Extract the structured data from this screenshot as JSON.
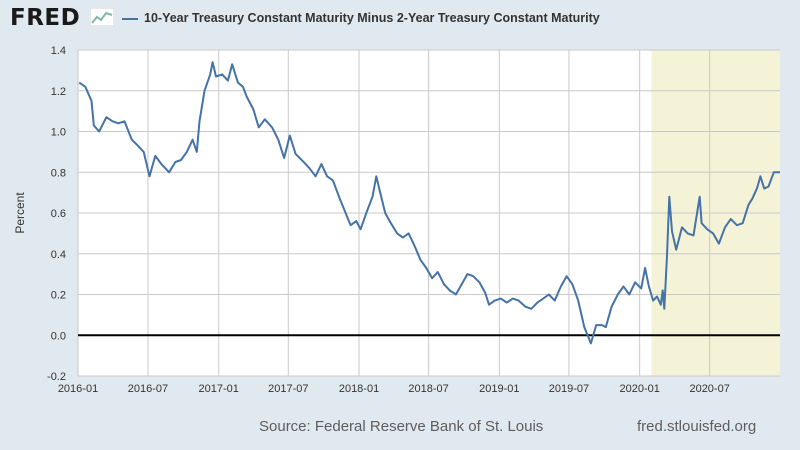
{
  "header": {
    "logo_text": "FRED",
    "logo_icon": "line-chart-icon",
    "series_title": "10-Year Treasury Constant Maturity Minus 2-Year Treasury Constant Maturity"
  },
  "footer": {
    "source": "Source: Federal Reserve Bank of St. Louis",
    "website": "fred.stlouisfed.org"
  },
  "colors": {
    "background": "#e1e9f0",
    "plot_bg": "#ffffff",
    "line": "#4572a7",
    "recession": "#f5f3d7",
    "zero_line": "#000000",
    "grid": "#c9c9c9"
  },
  "chart_data": {
    "type": "line",
    "title": "10-Year Treasury Constant Maturity Minus 2-Year Treasury Constant Maturity",
    "xlabel": "",
    "ylabel": "Percent",
    "ylim": [
      -0.2,
      1.4
    ],
    "xlim": [
      "2016-01-01",
      "2020-12-31"
    ],
    "grid": true,
    "legend": "top-left",
    "yticks": [
      "-0.2",
      "0.0",
      "0.2",
      "0.4",
      "0.6",
      "0.8",
      "1.0",
      "1.2",
      "1.4"
    ],
    "xticks": [
      {
        "date": "2016-01-01",
        "label": "2016-01"
      },
      {
        "date": "2016-07-01",
        "label": "2016-07"
      },
      {
        "date": "2017-01-01",
        "label": "2017-01"
      },
      {
        "date": "2017-07-01",
        "label": "2017-07"
      },
      {
        "date": "2018-01-01",
        "label": "2018-01"
      },
      {
        "date": "2018-07-01",
        "label": "2018-07"
      },
      {
        "date": "2019-01-01",
        "label": "2019-01"
      },
      {
        "date": "2019-07-01",
        "label": "2019-07"
      },
      {
        "date": "2020-01-01",
        "label": "2020-01"
      },
      {
        "date": "2020-07-01",
        "label": "2020-07"
      }
    ],
    "shaded_periods": [
      {
        "start": "2020-02-01",
        "end": "2020-12-31"
      }
    ],
    "reference_line": 0.0,
    "series": [
      {
        "color": "#4572a7",
        "points": [
          [
            "2016-01-04",
            1.24
          ],
          [
            "2016-01-20",
            1.22
          ],
          [
            "2016-02-05",
            1.15
          ],
          [
            "2016-02-11",
            1.03
          ],
          [
            "2016-02-25",
            1.0
          ],
          [
            "2016-03-15",
            1.07
          ],
          [
            "2016-03-31",
            1.05
          ],
          [
            "2016-04-15",
            1.04
          ],
          [
            "2016-05-01",
            1.05
          ],
          [
            "2016-05-20",
            0.96
          ],
          [
            "2016-06-05",
            0.93
          ],
          [
            "2016-06-20",
            0.9
          ],
          [
            "2016-07-05",
            0.78
          ],
          [
            "2016-07-20",
            0.88
          ],
          [
            "2016-08-05",
            0.84
          ],
          [
            "2016-08-25",
            0.8
          ],
          [
            "2016-09-10",
            0.85
          ],
          [
            "2016-09-25",
            0.86
          ],
          [
            "2016-10-10",
            0.9
          ],
          [
            "2016-10-25",
            0.96
          ],
          [
            "2016-11-05",
            0.9
          ],
          [
            "2016-11-12",
            1.05
          ],
          [
            "2016-11-25",
            1.2
          ],
          [
            "2016-12-10",
            1.28
          ],
          [
            "2016-12-16",
            1.34
          ],
          [
            "2016-12-25",
            1.27
          ],
          [
            "2017-01-10",
            1.28
          ],
          [
            "2017-01-25",
            1.25
          ],
          [
            "2017-02-05",
            1.33
          ],
          [
            "2017-02-20",
            1.24
          ],
          [
            "2017-03-05",
            1.22
          ],
          [
            "2017-03-15",
            1.17
          ],
          [
            "2017-04-01",
            1.11
          ],
          [
            "2017-04-15",
            1.02
          ],
          [
            "2017-05-01",
            1.06
          ],
          [
            "2017-05-20",
            1.02
          ],
          [
            "2017-06-05",
            0.96
          ],
          [
            "2017-06-20",
            0.87
          ],
          [
            "2017-07-05",
            0.98
          ],
          [
            "2017-07-20",
            0.89
          ],
          [
            "2017-08-10",
            0.85
          ],
          [
            "2017-08-25",
            0.82
          ],
          [
            "2017-09-10",
            0.78
          ],
          [
            "2017-09-25",
            0.84
          ],
          [
            "2017-10-10",
            0.78
          ],
          [
            "2017-10-25",
            0.76
          ],
          [
            "2017-11-10",
            0.68
          ],
          [
            "2017-11-25",
            0.61
          ],
          [
            "2017-12-10",
            0.54
          ],
          [
            "2017-12-25",
            0.56
          ],
          [
            "2018-01-05",
            0.52
          ],
          [
            "2018-01-20",
            0.6
          ],
          [
            "2018-02-05",
            0.68
          ],
          [
            "2018-02-15",
            0.78
          ],
          [
            "2018-02-25",
            0.7
          ],
          [
            "2018-03-10",
            0.6
          ],
          [
            "2018-03-25",
            0.55
          ],
          [
            "2018-04-10",
            0.5
          ],
          [
            "2018-04-25",
            0.48
          ],
          [
            "2018-05-10",
            0.5
          ],
          [
            "2018-05-25",
            0.44
          ],
          [
            "2018-06-10",
            0.37
          ],
          [
            "2018-06-25",
            0.33
          ],
          [
            "2018-07-10",
            0.28
          ],
          [
            "2018-07-25",
            0.31
          ],
          [
            "2018-08-10",
            0.25
          ],
          [
            "2018-08-25",
            0.22
          ],
          [
            "2018-09-10",
            0.2
          ],
          [
            "2018-09-25",
            0.25
          ],
          [
            "2018-10-10",
            0.3
          ],
          [
            "2018-10-25",
            0.29
          ],
          [
            "2018-11-10",
            0.26
          ],
          [
            "2018-11-25",
            0.21
          ],
          [
            "2018-12-05",
            0.15
          ],
          [
            "2018-12-20",
            0.17
          ],
          [
            "2019-01-05",
            0.18
          ],
          [
            "2019-01-20",
            0.16
          ],
          [
            "2019-02-05",
            0.18
          ],
          [
            "2019-02-20",
            0.17
          ],
          [
            "2019-03-10",
            0.14
          ],
          [
            "2019-03-25",
            0.13
          ],
          [
            "2019-04-10",
            0.16
          ],
          [
            "2019-04-25",
            0.18
          ],
          [
            "2019-05-10",
            0.2
          ],
          [
            "2019-05-25",
            0.17
          ],
          [
            "2019-06-10",
            0.24
          ],
          [
            "2019-06-25",
            0.29
          ],
          [
            "2019-07-10",
            0.25
          ],
          [
            "2019-07-25",
            0.17
          ],
          [
            "2019-08-10",
            0.04
          ],
          [
            "2019-08-27",
            -0.04
          ],
          [
            "2019-09-10",
            0.05
          ],
          [
            "2019-09-25",
            0.05
          ],
          [
            "2019-10-05",
            0.04
          ],
          [
            "2019-10-20",
            0.14
          ],
          [
            "2019-11-05",
            0.2
          ],
          [
            "2019-11-20",
            0.24
          ],
          [
            "2019-12-05",
            0.2
          ],
          [
            "2019-12-20",
            0.26
          ],
          [
            "2020-01-05",
            0.23
          ],
          [
            "2020-01-15",
            0.33
          ],
          [
            "2020-01-25",
            0.24
          ],
          [
            "2020-02-05",
            0.17
          ],
          [
            "2020-02-15",
            0.19
          ],
          [
            "2020-02-25",
            0.15
          ],
          [
            "2020-03-01",
            0.22
          ],
          [
            "2020-03-05",
            0.13
          ],
          [
            "2020-03-12",
            0.39
          ],
          [
            "2020-03-18",
            0.68
          ],
          [
            "2020-03-25",
            0.51
          ],
          [
            "2020-04-05",
            0.42
          ],
          [
            "2020-04-20",
            0.53
          ],
          [
            "2020-05-05",
            0.5
          ],
          [
            "2020-05-20",
            0.49
          ],
          [
            "2020-06-05",
            0.68
          ],
          [
            "2020-06-10",
            0.55
          ],
          [
            "2020-06-25",
            0.52
          ],
          [
            "2020-07-10",
            0.5
          ],
          [
            "2020-07-25",
            0.45
          ],
          [
            "2020-08-10",
            0.53
          ],
          [
            "2020-08-25",
            0.57
          ],
          [
            "2020-09-10",
            0.54
          ],
          [
            "2020-09-25",
            0.55
          ],
          [
            "2020-10-10",
            0.64
          ],
          [
            "2020-10-20",
            0.67
          ],
          [
            "2020-11-01",
            0.72
          ],
          [
            "2020-11-10",
            0.78
          ],
          [
            "2020-11-20",
            0.72
          ],
          [
            "2020-12-01",
            0.73
          ],
          [
            "2020-12-15",
            0.8
          ],
          [
            "2020-12-31",
            0.8
          ]
        ]
      }
    ]
  }
}
